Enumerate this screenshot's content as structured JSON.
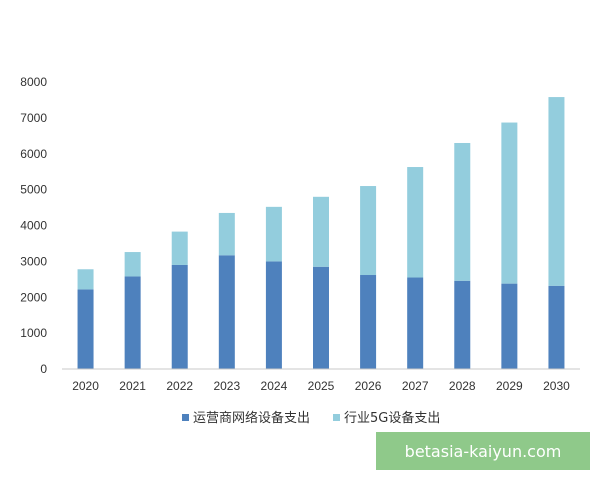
{
  "chart_data": {
    "type": "bar",
    "stacked": true,
    "categories": [
      "2020",
      "2021",
      "2022",
      "2023",
      "2024",
      "2025",
      "2026",
      "2027",
      "2028",
      "2029",
      "2030"
    ],
    "series": [
      {
        "name": "运营商网络设备支出",
        "color": "#4e81bd",
        "values": [
          2220,
          2580,
          2900,
          3170,
          3000,
          2850,
          2620,
          2550,
          2460,
          2380,
          2320
        ]
      },
      {
        "name": "行业5G设备支出",
        "color": "#93cddd",
        "values": [
          560,
          680,
          930,
          1180,
          1520,
          1950,
          2480,
          3080,
          3840,
          4490,
          5260
        ]
      }
    ],
    "ylim": [
      0,
      8000
    ],
    "yticks": [
      0,
      1000,
      2000,
      3000,
      4000,
      5000,
      6000,
      7000,
      8000
    ],
    "grid": false,
    "legend": "bottom"
  },
  "watermark": "betasia-kaiyun.com"
}
